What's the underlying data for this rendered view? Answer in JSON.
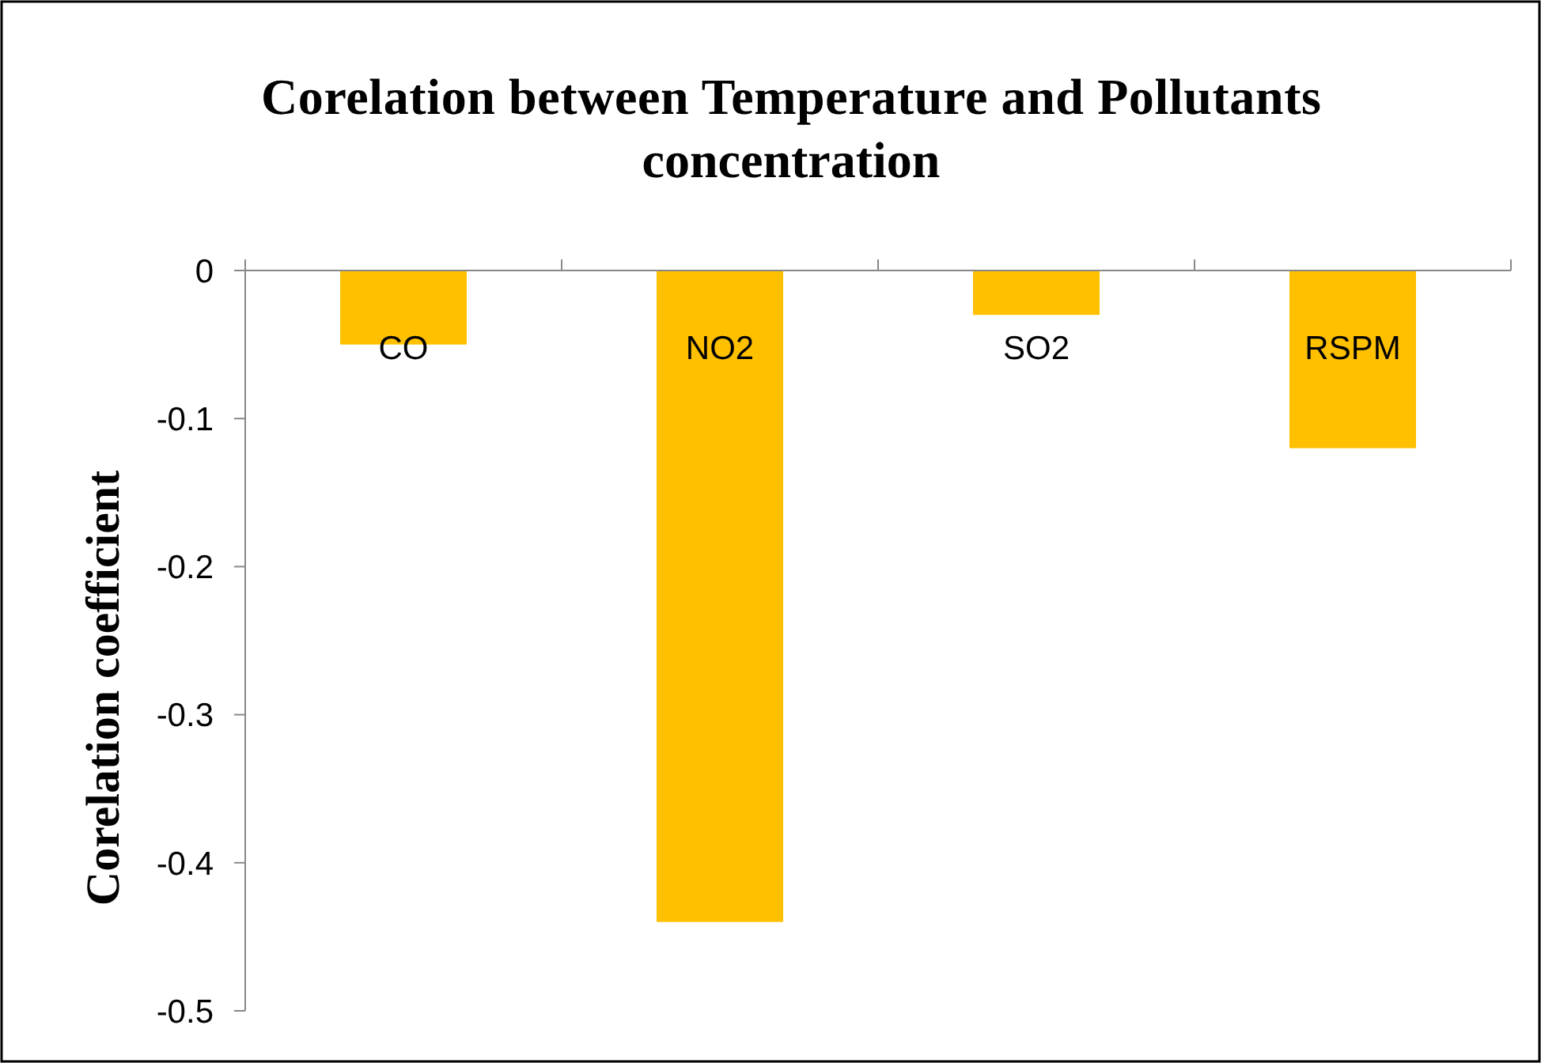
{
  "chart_data": {
    "type": "bar",
    "title": "Corelation between Temperature and Pollutants concentration",
    "ylabel": "Corelation  coefficient",
    "categories": [
      "CO",
      "NO2",
      "SO2",
      "RSPM"
    ],
    "values": [
      -0.05,
      -0.44,
      -0.03,
      -0.12
    ],
    "color": "#ffc000",
    "ylim": [
      -0.5,
      0
    ],
    "yticks": [
      0,
      -0.1,
      -0.2,
      -0.3,
      -0.4,
      -0.5
    ],
    "grid": false
  }
}
